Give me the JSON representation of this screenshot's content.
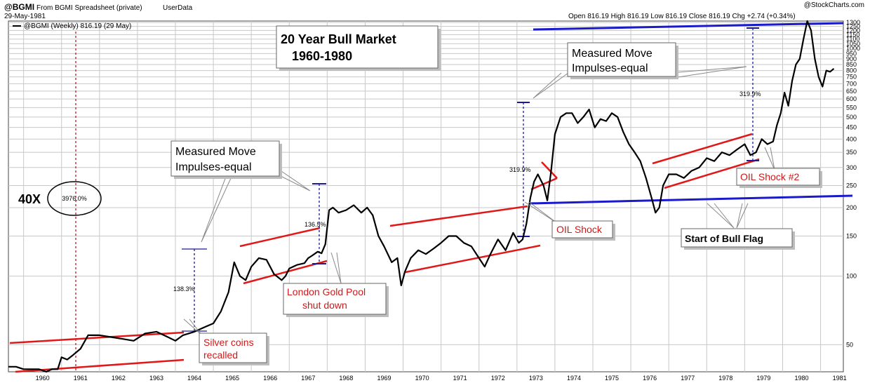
{
  "header": {
    "symbol": "@BGMI",
    "source": "From BGMI Spreadsheet (private)",
    "userdata": "UserData",
    "date": "29-May-1981",
    "legend": "@BGMI (Weekly) 816.19 (29 May)",
    "ohlc": "Open 816.19  High 816.19  Low 816.19  Close 816.19  Chg +2.74 (+0.34%)",
    "watermark": "@StockCharts.com"
  },
  "chart_data": {
    "type": "line",
    "y_scale": "log",
    "ylim": [
      38,
      1320
    ],
    "xlim": [
      1959.6,
      1981.6
    ],
    "title": "",
    "xlabel": "",
    "ylabel": "",
    "grid": true,
    "x_ticks": [
      "1960",
      "1961",
      "1962",
      "1963",
      "1964",
      "1965",
      "1966",
      "1967",
      "1968",
      "1969",
      "1970",
      "1971",
      "1972",
      "1973",
      "1974",
      "1975",
      "1976",
      "1977",
      "1978",
      "1979",
      "1980",
      "1981"
    ],
    "y_ticks": [
      50,
      100,
      150,
      200,
      250,
      300,
      350,
      400,
      450,
      500,
      550,
      600,
      650,
      700,
      750,
      800,
      850,
      900,
      950,
      1000,
      1050,
      1100,
      1150,
      1200,
      1250,
      1300
    ],
    "y_tick_labels": [
      "50",
      "100",
      "150",
      "200",
      "250",
      "300",
      "350",
      "400",
      "450",
      "500",
      "550",
      "600",
      "650",
      "700",
      "750",
      "800",
      "850",
      "900",
      "950",
      "1000",
      "1050",
      "1100",
      "1150",
      "1200",
      "1250",
      "1300"
    ],
    "series": [
      {
        "color": "#000000",
        "x": [
          1959.6,
          1959.8,
          1960.0,
          1960.2,
          1960.4,
          1960.6,
          1960.75,
          1960.9,
          1961.0,
          1961.15,
          1961.3,
          1961.5,
          1961.7,
          1962.0,
          1962.3,
          1962.6,
          1962.9,
          1963.2,
          1963.5,
          1963.8,
          1964.0,
          1964.2,
          1964.5,
          1964.8,
          1965.0,
          1965.2,
          1965.4,
          1965.55,
          1965.7,
          1965.85,
          1966.0,
          1966.2,
          1966.4,
          1966.6,
          1966.8,
          1966.9,
          1967.0,
          1967.2,
          1967.4,
          1967.5,
          1967.6,
          1967.75,
          1967.85,
          1967.95,
          1968.05,
          1968.15,
          1968.3,
          1968.5,
          1968.7,
          1968.9,
          1969.05,
          1969.2,
          1969.35,
          1969.5,
          1969.7,
          1969.85,
          1969.95,
          1970.05,
          1970.2,
          1970.4,
          1970.6,
          1970.8,
          1971.0,
          1971.2,
          1971.4,
          1971.6,
          1971.8,
          1972.0,
          1972.15,
          1972.3,
          1972.5,
          1972.7,
          1972.9,
          1973.05,
          1973.15,
          1973.25,
          1973.35,
          1973.45,
          1973.55,
          1973.7,
          1973.8,
          1973.9,
          1974.0,
          1974.15,
          1974.3,
          1974.45,
          1974.6,
          1974.75,
          1974.9,
          1975.05,
          1975.2,
          1975.35,
          1975.5,
          1975.65,
          1975.8,
          1975.95,
          1976.1,
          1976.25,
          1976.4,
          1976.55,
          1976.65,
          1976.75,
          1976.85,
          1977.0,
          1977.2,
          1977.4,
          1977.6,
          1977.8,
          1978.0,
          1978.2,
          1978.4,
          1978.6,
          1978.8,
          1979.0,
          1979.15,
          1979.3,
          1979.45,
          1979.6,
          1979.75,
          1979.85,
          1979.95,
          1980.05,
          1980.15,
          1980.25,
          1980.35,
          1980.45,
          1980.55,
          1980.65,
          1980.75,
          1980.85,
          1980.95,
          1981.05,
          1981.15,
          1981.25,
          1981.35
        ],
        "values": [
          40,
          40,
          39,
          39,
          39,
          38,
          39,
          39,
          44,
          43,
          45,
          48,
          55,
          55,
          54,
          53,
          52,
          56,
          57,
          54,
          52,
          55,
          57,
          60,
          62,
          70,
          85,
          115,
          100,
          96,
          110,
          120,
          118,
          102,
          96,
          100,
          108,
          112,
          114,
          120,
          123,
          128,
          126,
          138,
          195,
          200,
          190,
          195,
          205,
          190,
          200,
          185,
          150,
          135,
          115,
          120,
          91,
          105,
          120,
          130,
          125,
          132,
          140,
          150,
          150,
          140,
          135,
          120,
          110,
          125,
          145,
          130,
          155,
          140,
          145,
          170,
          220,
          260,
          280,
          250,
          215,
          290,
          420,
          500,
          520,
          520,
          470,
          500,
          540,
          450,
          490,
          480,
          520,
          500,
          430,
          380,
          350,
          320,
          270,
          220,
          190,
          200,
          250,
          280,
          280,
          270,
          290,
          300,
          330,
          320,
          350,
          340,
          360,
          380,
          340,
          350,
          400,
          380,
          390,
          460,
          520,
          640,
          560,
          720,
          850,
          900,
          1100,
          1320,
          1200,
          900,
          750,
          680,
          800,
          790,
          816
        ]
      }
    ]
  },
  "annotations": {
    "title_line1": "20 Year Bull Market",
    "title_line2": "1960-1980",
    "mm1_line1": "Measured Move",
    "mm1_line2": "Impulses-equal",
    "mm2_line1": "Measured Move",
    "mm2_line2": "Impulses-equal",
    "x40": "40X",
    "pct_3976": "3976.0%",
    "pct_1383": "138.3%",
    "pct_1365": "136.5%",
    "pct_3199a": "319.9%",
    "pct_3199b": "319.9%",
    "silver_line1": "Silver coins",
    "silver_line2": "recalled",
    "london_line1": "London Gold Pool",
    "london_line2": "shut down",
    "oil1": "OIL Shock",
    "oil2": "OIL Shock #2",
    "bullflag": "Start of Bull Flag"
  },
  "colors": {
    "price": "#000000",
    "channel": "#e01818",
    "resistance": "#1a1acc",
    "measure": "#1a1a99",
    "vline": "#cc0000"
  }
}
